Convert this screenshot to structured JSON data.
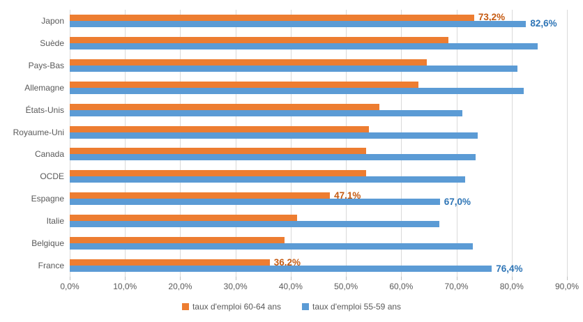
{
  "chart_data": {
    "type": "bar",
    "orientation": "horizontal",
    "title": "",
    "xlabel": "",
    "ylabel": "",
    "xlim": [
      0,
      90
    ],
    "grid": true,
    "legend_position": "bottom",
    "x_ticks": [
      "0,0%",
      "10,0%",
      "20,0%",
      "30,0%",
      "40,0%",
      "50,0%",
      "60,0%",
      "70,0%",
      "80,0%",
      "90,0%"
    ],
    "categories": [
      "Japon",
      "Suède",
      "Pays-Bas",
      "Allemagne",
      "États-Unis",
      "Royaume-Uni",
      "Canada",
      "OCDE",
      "Espagne",
      "Italie",
      "Belgique",
      "France"
    ],
    "series": [
      {
        "name": "taux d'emploi 60-64 ans",
        "color": "#ED7D31",
        "label_color": "#C55A11",
        "values": [
          73.2,
          68.6,
          64.6,
          63.1,
          56.0,
          54.1,
          53.6,
          53.6,
          47.1,
          41.1,
          38.9,
          36.2
        ],
        "data_labels": [
          "73,2%",
          "",
          "",
          "",
          "",
          "",
          "",
          "",
          "47,1%",
          "",
          "",
          "36,2%"
        ]
      },
      {
        "name": "taux d'emploi 55-59 ans",
        "color": "#5B9BD5",
        "label_color": "#2E75B6",
        "values": [
          82.6,
          84.7,
          81.0,
          82.2,
          71.1,
          73.9,
          73.5,
          71.6,
          67.0,
          66.9,
          73.0,
          76.4
        ],
        "data_labels": [
          "82,6%",
          "",
          "",
          "",
          "",
          "",
          "",
          "",
          "67,0%",
          "",
          "",
          "76,4%"
        ]
      }
    ]
  },
  "colors": {
    "gridline": "#D9D9D9",
    "axis_text": "#595959",
    "background": "#FFFFFF"
  }
}
